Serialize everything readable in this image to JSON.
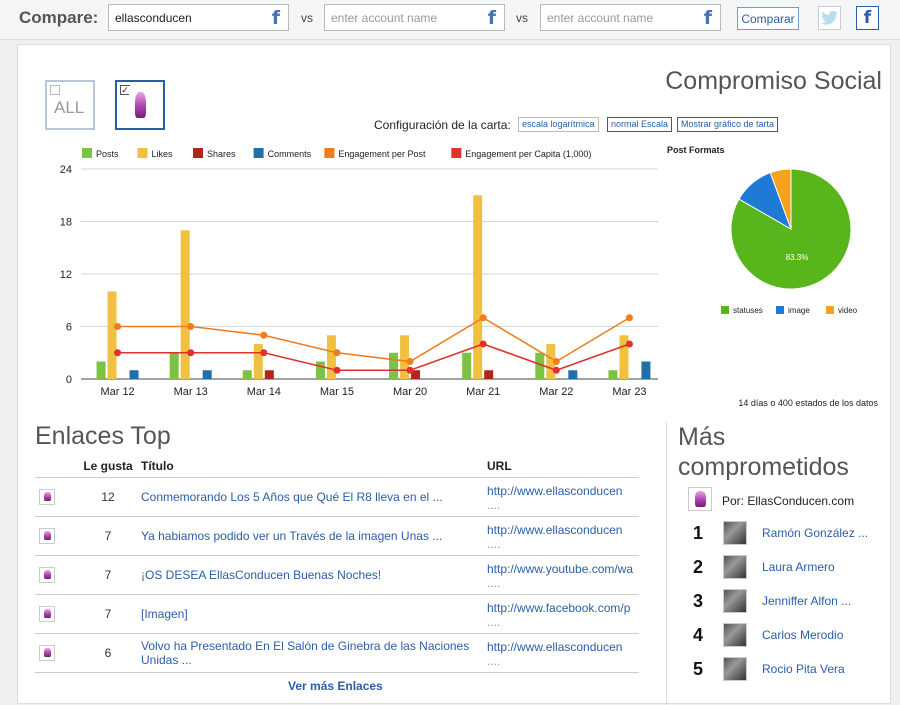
{
  "compare": {
    "label": "Compare:",
    "account1_value": "ellasconducen",
    "account2_placeholder": "enter account name",
    "account3_placeholder": "enter account name",
    "vs1": "vs",
    "vs2": "vs",
    "button": "Comparar",
    "fb_icon_char": "f"
  },
  "panel": {
    "title": "Compromiso Social",
    "thumb_all_label": "ALL",
    "config_label": "Configuración de la carta:",
    "config_buttons": [
      "escala logarítmica",
      "normal Escala",
      "Mostrar gráfico de tarta"
    ],
    "note": "14 días o 400 estados de los datos"
  },
  "chart_data": [
    {
      "type": "bar",
      "categories": [
        "Mar 12",
        "Mar 13",
        "Mar 14",
        "Mar 15",
        "Mar 20",
        "Mar 21",
        "Mar 22",
        "Mar 23"
      ],
      "ylim": [
        0,
        24
      ],
      "yticks": [
        0,
        6,
        12,
        18,
        24
      ],
      "legend_position": "top",
      "grid": true,
      "series": [
        {
          "name": "Posts",
          "kind": "bar",
          "color": "#7cc243",
          "values": [
            2,
            3,
            1,
            2,
            3,
            3,
            3,
            1
          ]
        },
        {
          "name": "Likes",
          "kind": "bar",
          "color": "#f0c040",
          "values": [
            10,
            17,
            4,
            5,
            5,
            21,
            4,
            5
          ]
        },
        {
          "name": "Shares",
          "kind": "bar",
          "color": "#b0251c",
          "values": [
            0,
            0,
            1,
            0,
            1,
            1,
            0,
            0
          ]
        },
        {
          "name": "Comments",
          "kind": "bar",
          "color": "#1f6fa8",
          "values": [
            1,
            1,
            0,
            0,
            0,
            0,
            1,
            2
          ]
        },
        {
          "name": "Engagement per Post",
          "kind": "line",
          "color": "#f07d1c",
          "values": [
            6,
            6,
            5,
            3,
            2,
            7,
            2,
            7
          ]
        },
        {
          "name": "Engagement per Capita (1,000)",
          "kind": "line",
          "color": "#e03030",
          "values": [
            3,
            3,
            3,
            1,
            1,
            4,
            1,
            4
          ]
        }
      ]
    },
    {
      "type": "pie",
      "title": "Post Formats",
      "labels": [
        "statuses",
        "image",
        "video"
      ],
      "values": [
        83.3,
        11.1,
        5.6
      ],
      "colors": [
        "#58b51c",
        "#1f7ad6",
        "#f4a31c"
      ],
      "data_label": "83.3%",
      "legend_position": "bottom"
    }
  ],
  "links": {
    "title": "Enlaces Top",
    "headers": [
      "Le gusta",
      "Título",
      "URL"
    ],
    "rows": [
      {
        "likes": "12",
        "title": "Conmemorando Los 5 Años que Qué El R8 lleva en el ...",
        "url": "http://www.ellasconducen",
        "url_more": "...."
      },
      {
        "likes": "7",
        "title": "Ya habiamos podido ver un Través de la imagen Unas ...",
        "url": "http://www.ellasconducen",
        "url_more": "...."
      },
      {
        "likes": "7",
        "title": "¡OS DESEA EllasConducen Buenas Noches!",
        "url": "http://www.youtube.com/wa",
        "url_more": "...."
      },
      {
        "likes": "7",
        "title": "[Imagen]",
        "url": "http://www.facebook.com/p",
        "url_more": "...."
      },
      {
        "likes": "6",
        "title": "Volvo ha Presentado En El Salón de Ginebra de las Naciones Unidas ...",
        "url": "http://www.ellasconducen",
        "url_more": "...."
      }
    ],
    "more": "Ver más Enlaces"
  },
  "engaged": {
    "title": "Más comprometidos",
    "por": "Por: EllasConducen.com",
    "people": [
      {
        "rank": "1",
        "name": "Ramón González ..."
      },
      {
        "rank": "2",
        "name": "Laura Armero"
      },
      {
        "rank": "3",
        "name": "Jenniffer Alfon ..."
      },
      {
        "rank": "4",
        "name": "Carlos Merodio"
      },
      {
        "rank": "5",
        "name": "Rocio Pita Vera"
      }
    ]
  }
}
